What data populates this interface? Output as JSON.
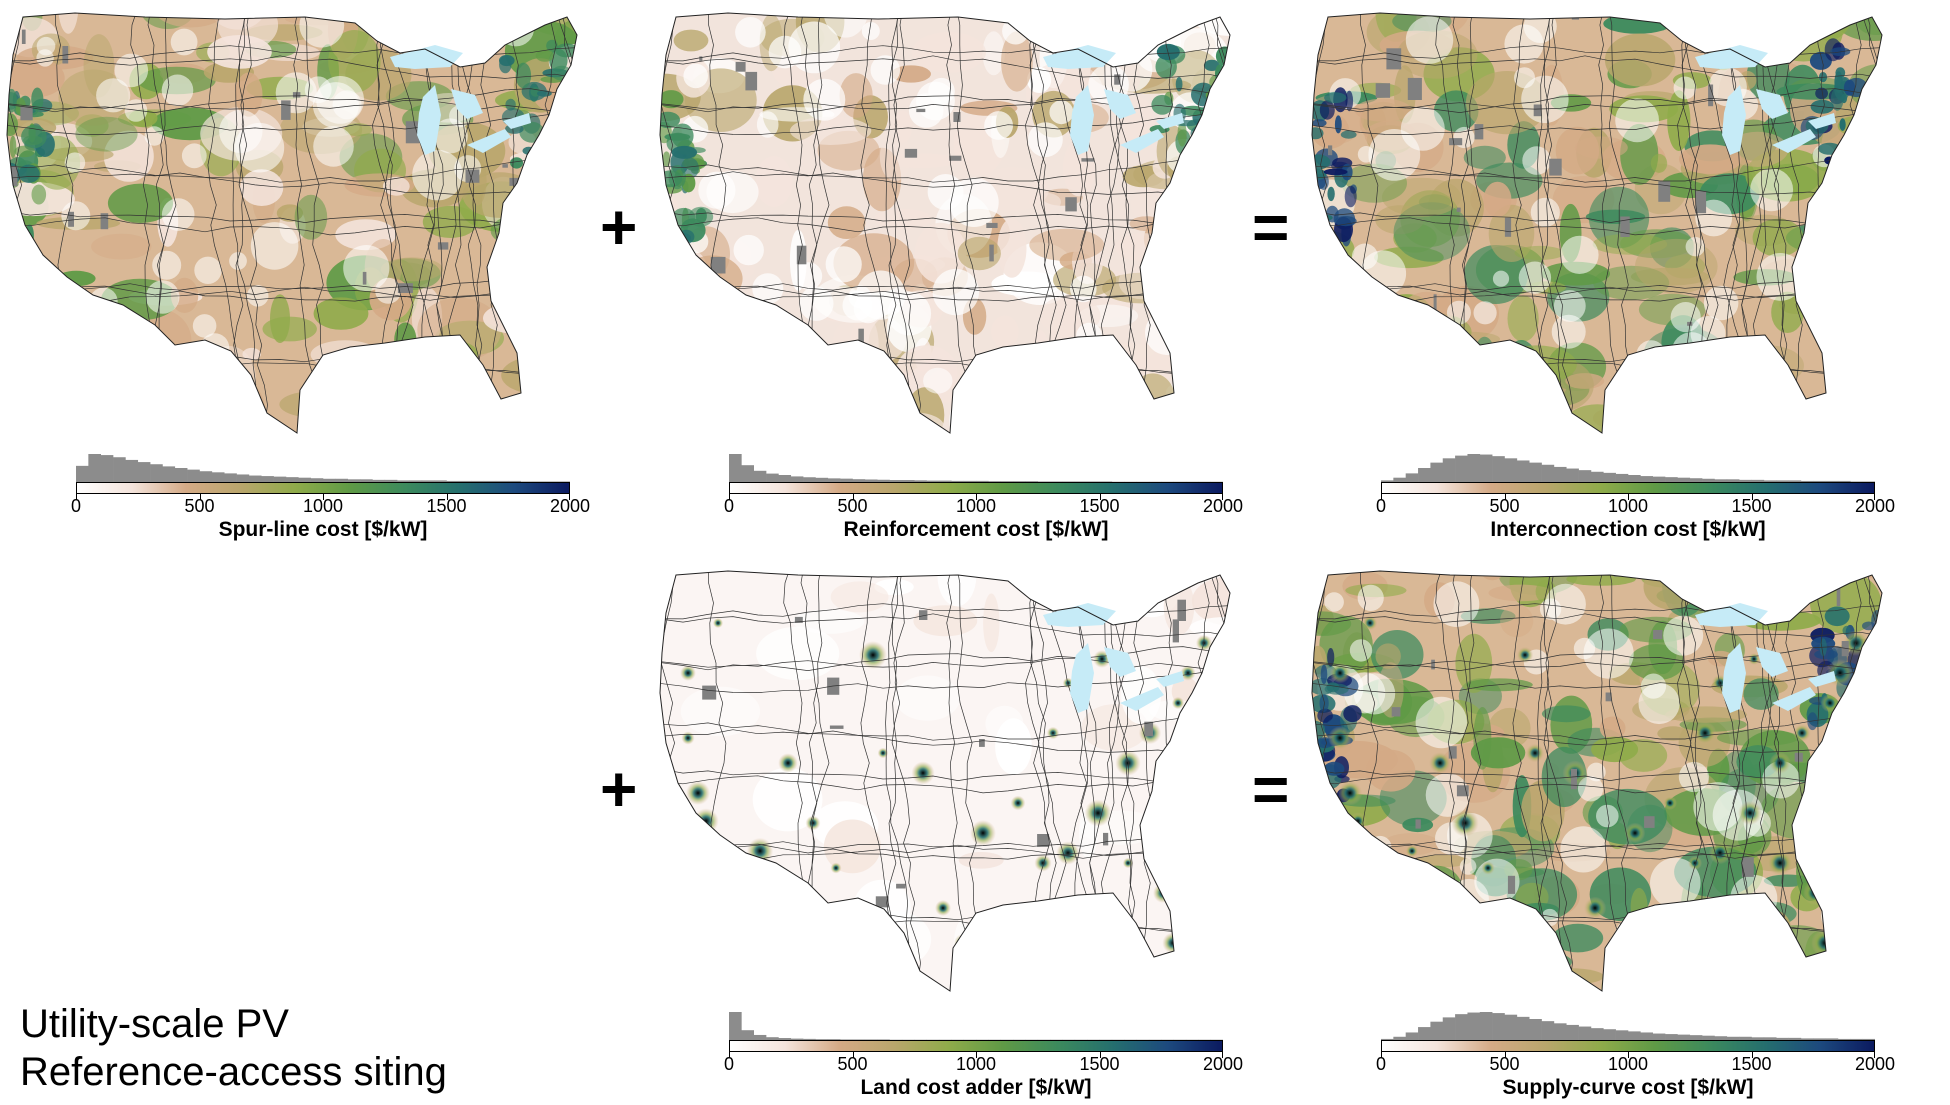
{
  "caption": {
    "line1": "Utility-scale PV",
    "line2": "Reference-access siting"
  },
  "operators": {
    "plus": "+",
    "equals": "="
  },
  "colormap": {
    "stops": [
      "#ffffff",
      "#f4e4dc",
      "#d4aa86",
      "#b9a66c",
      "#8fab4a",
      "#5f9a46",
      "#3c8a5d",
      "#256f6e",
      "#1d4a7e",
      "#0b1a60"
    ],
    "water_color": "#c6ebf7",
    "nodata_color": "#808080"
  },
  "chart_data": [
    {
      "type": "heatmap",
      "id": "spur",
      "title": "",
      "colorbar_label": "Spur-line cost [$/kW]",
      "ticks": [
        "0",
        "500",
        "1000",
        "1500",
        "2000"
      ],
      "range": [
        0,
        2000
      ],
      "histogram_bins": [
        30,
        52,
        50,
        46,
        41,
        37,
        33,
        29,
        26,
        23,
        20,
        18,
        16,
        14,
        12,
        11,
        10,
        9,
        8,
        7,
        6,
        6,
        5,
        5,
        4,
        4,
        3,
        3,
        3,
        3,
        2,
        2,
        2,
        2,
        2,
        2,
        1,
        1,
        1,
        1
      ],
      "intensity": "medium"
    },
    {
      "type": "heatmap",
      "id": "reinforcement",
      "title": "",
      "colorbar_label": "Reinforcement cost [$/kW]",
      "ticks": [
        "0",
        "500",
        "1000",
        "1500",
        "2000"
      ],
      "range": [
        0,
        2000
      ],
      "histogram_bins": [
        100,
        60,
        40,
        30,
        25,
        20,
        17,
        15,
        13,
        12,
        10,
        9,
        8,
        7,
        7,
        6,
        5,
        5,
        4,
        4,
        4,
        3,
        3,
        3,
        3,
        2,
        2,
        2,
        2,
        2,
        2,
        1,
        1,
        1,
        1,
        1,
        1,
        1,
        1,
        1
      ],
      "intensity": "low"
    },
    {
      "type": "heatmap",
      "id": "interconnection",
      "title": "",
      "colorbar_label": "Interconnection cost [$/kW]",
      "ticks": [
        "0",
        "500",
        "1000",
        "1500",
        "2000"
      ],
      "range": [
        0,
        2000
      ],
      "histogram_bins": [
        3,
        8,
        16,
        26,
        36,
        44,
        49,
        52,
        51,
        48,
        44,
        40,
        36,
        32,
        28,
        25,
        22,
        19,
        17,
        15,
        13,
        11,
        10,
        9,
        8,
        7,
        6,
        5,
        5,
        4,
        4,
        3,
        3,
        3,
        2,
        2,
        2,
        2,
        1,
        1
      ],
      "intensity": "high"
    },
    {
      "type": "heatmap",
      "id": "land",
      "title": "",
      "colorbar_label": "Land cost adder [$/kW]",
      "ticks": [
        "0",
        "500",
        "1000",
        "1500",
        "2000"
      ],
      "range": [
        0,
        2000
      ],
      "histogram_bins": [
        100,
        35,
        18,
        10,
        7,
        5,
        4,
        3,
        3,
        2,
        2,
        2,
        2,
        1,
        1,
        1,
        1,
        1,
        1,
        1,
        1,
        1,
        1,
        1,
        1,
        1,
        1,
        1,
        1,
        1,
        1,
        1,
        1,
        1,
        1,
        1,
        1,
        1,
        1,
        1
      ],
      "intensity": "sparse"
    },
    {
      "type": "heatmap",
      "id": "supply",
      "title": "",
      "colorbar_label": "Supply-curve cost [$/kW]",
      "ticks": [
        "0",
        "500",
        "1000",
        "1500",
        "2000"
      ],
      "range": [
        0,
        2000
      ],
      "histogram_bins": [
        2,
        6,
        14,
        24,
        34,
        42,
        48,
        51,
        52,
        50,
        47,
        43,
        39,
        35,
        31,
        28,
        25,
        22,
        20,
        18,
        16,
        14,
        12,
        11,
        10,
        9,
        8,
        7,
        6,
        6,
        5,
        5,
        4,
        4,
        3,
        3,
        3,
        2,
        2,
        2
      ],
      "intensity": "high"
    }
  ]
}
